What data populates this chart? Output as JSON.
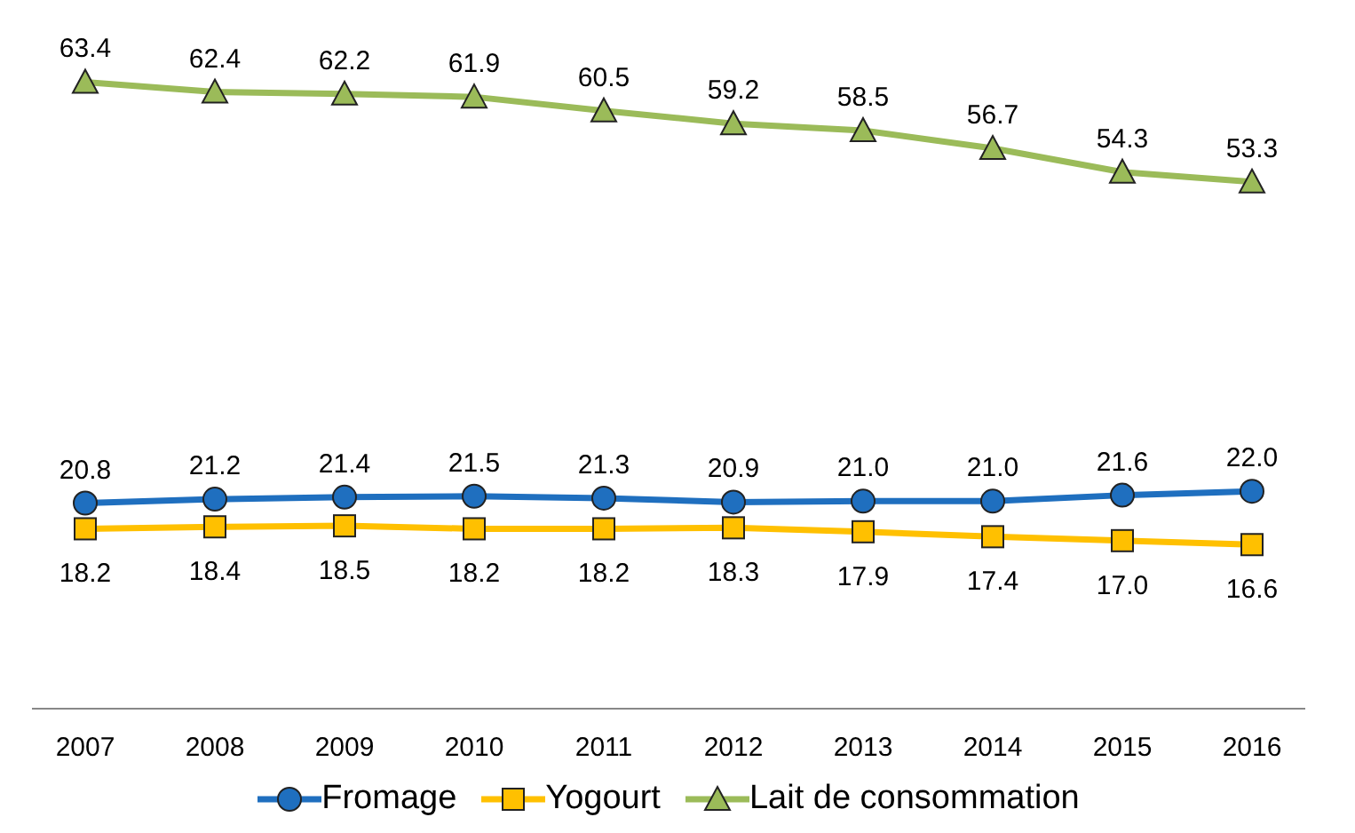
{
  "chart_data": {
    "type": "line",
    "categories": [
      "2007",
      "2008",
      "2009",
      "2010",
      "2011",
      "2012",
      "2013",
      "2014",
      "2015",
      "2016"
    ],
    "series": [
      {
        "name": "Fromage",
        "color": "#1f6fbf",
        "marker": "circle",
        "values": [
          20.8,
          21.2,
          21.4,
          21.5,
          21.3,
          20.9,
          21.0,
          21.0,
          21.6,
          22.0
        ],
        "value_labels": [
          "20.8",
          "21.2",
          "21.4",
          "21.5",
          "21.3",
          "20.9",
          "21.0",
          "21.0",
          "21.6",
          "22.0"
        ]
      },
      {
        "name": "Yogourt",
        "color": "#ffc000",
        "marker": "square",
        "values": [
          18.2,
          18.4,
          18.5,
          18.2,
          18.2,
          18.3,
          17.9,
          17.4,
          17.0,
          16.6
        ],
        "value_labels": [
          "18.2",
          "18.4",
          "18.5",
          "18.2",
          "18.2",
          "18.3",
          "17.9",
          "17.4",
          "17.0",
          "16.6"
        ]
      },
      {
        "name": "Lait de consommation",
        "color": "#9bbb59",
        "marker": "triangle",
        "values": [
          63.4,
          62.4,
          62.2,
          61.9,
          60.5,
          59.2,
          58.5,
          56.7,
          54.3,
          53.3
        ],
        "value_labels": [
          "63.4",
          "62.4",
          "62.2",
          "61.9",
          "60.5",
          "59.2",
          "58.5",
          "56.7",
          "54.3",
          "53.3"
        ]
      }
    ],
    "legend": "bottom",
    "grid": false,
    "line_style": "solid"
  }
}
